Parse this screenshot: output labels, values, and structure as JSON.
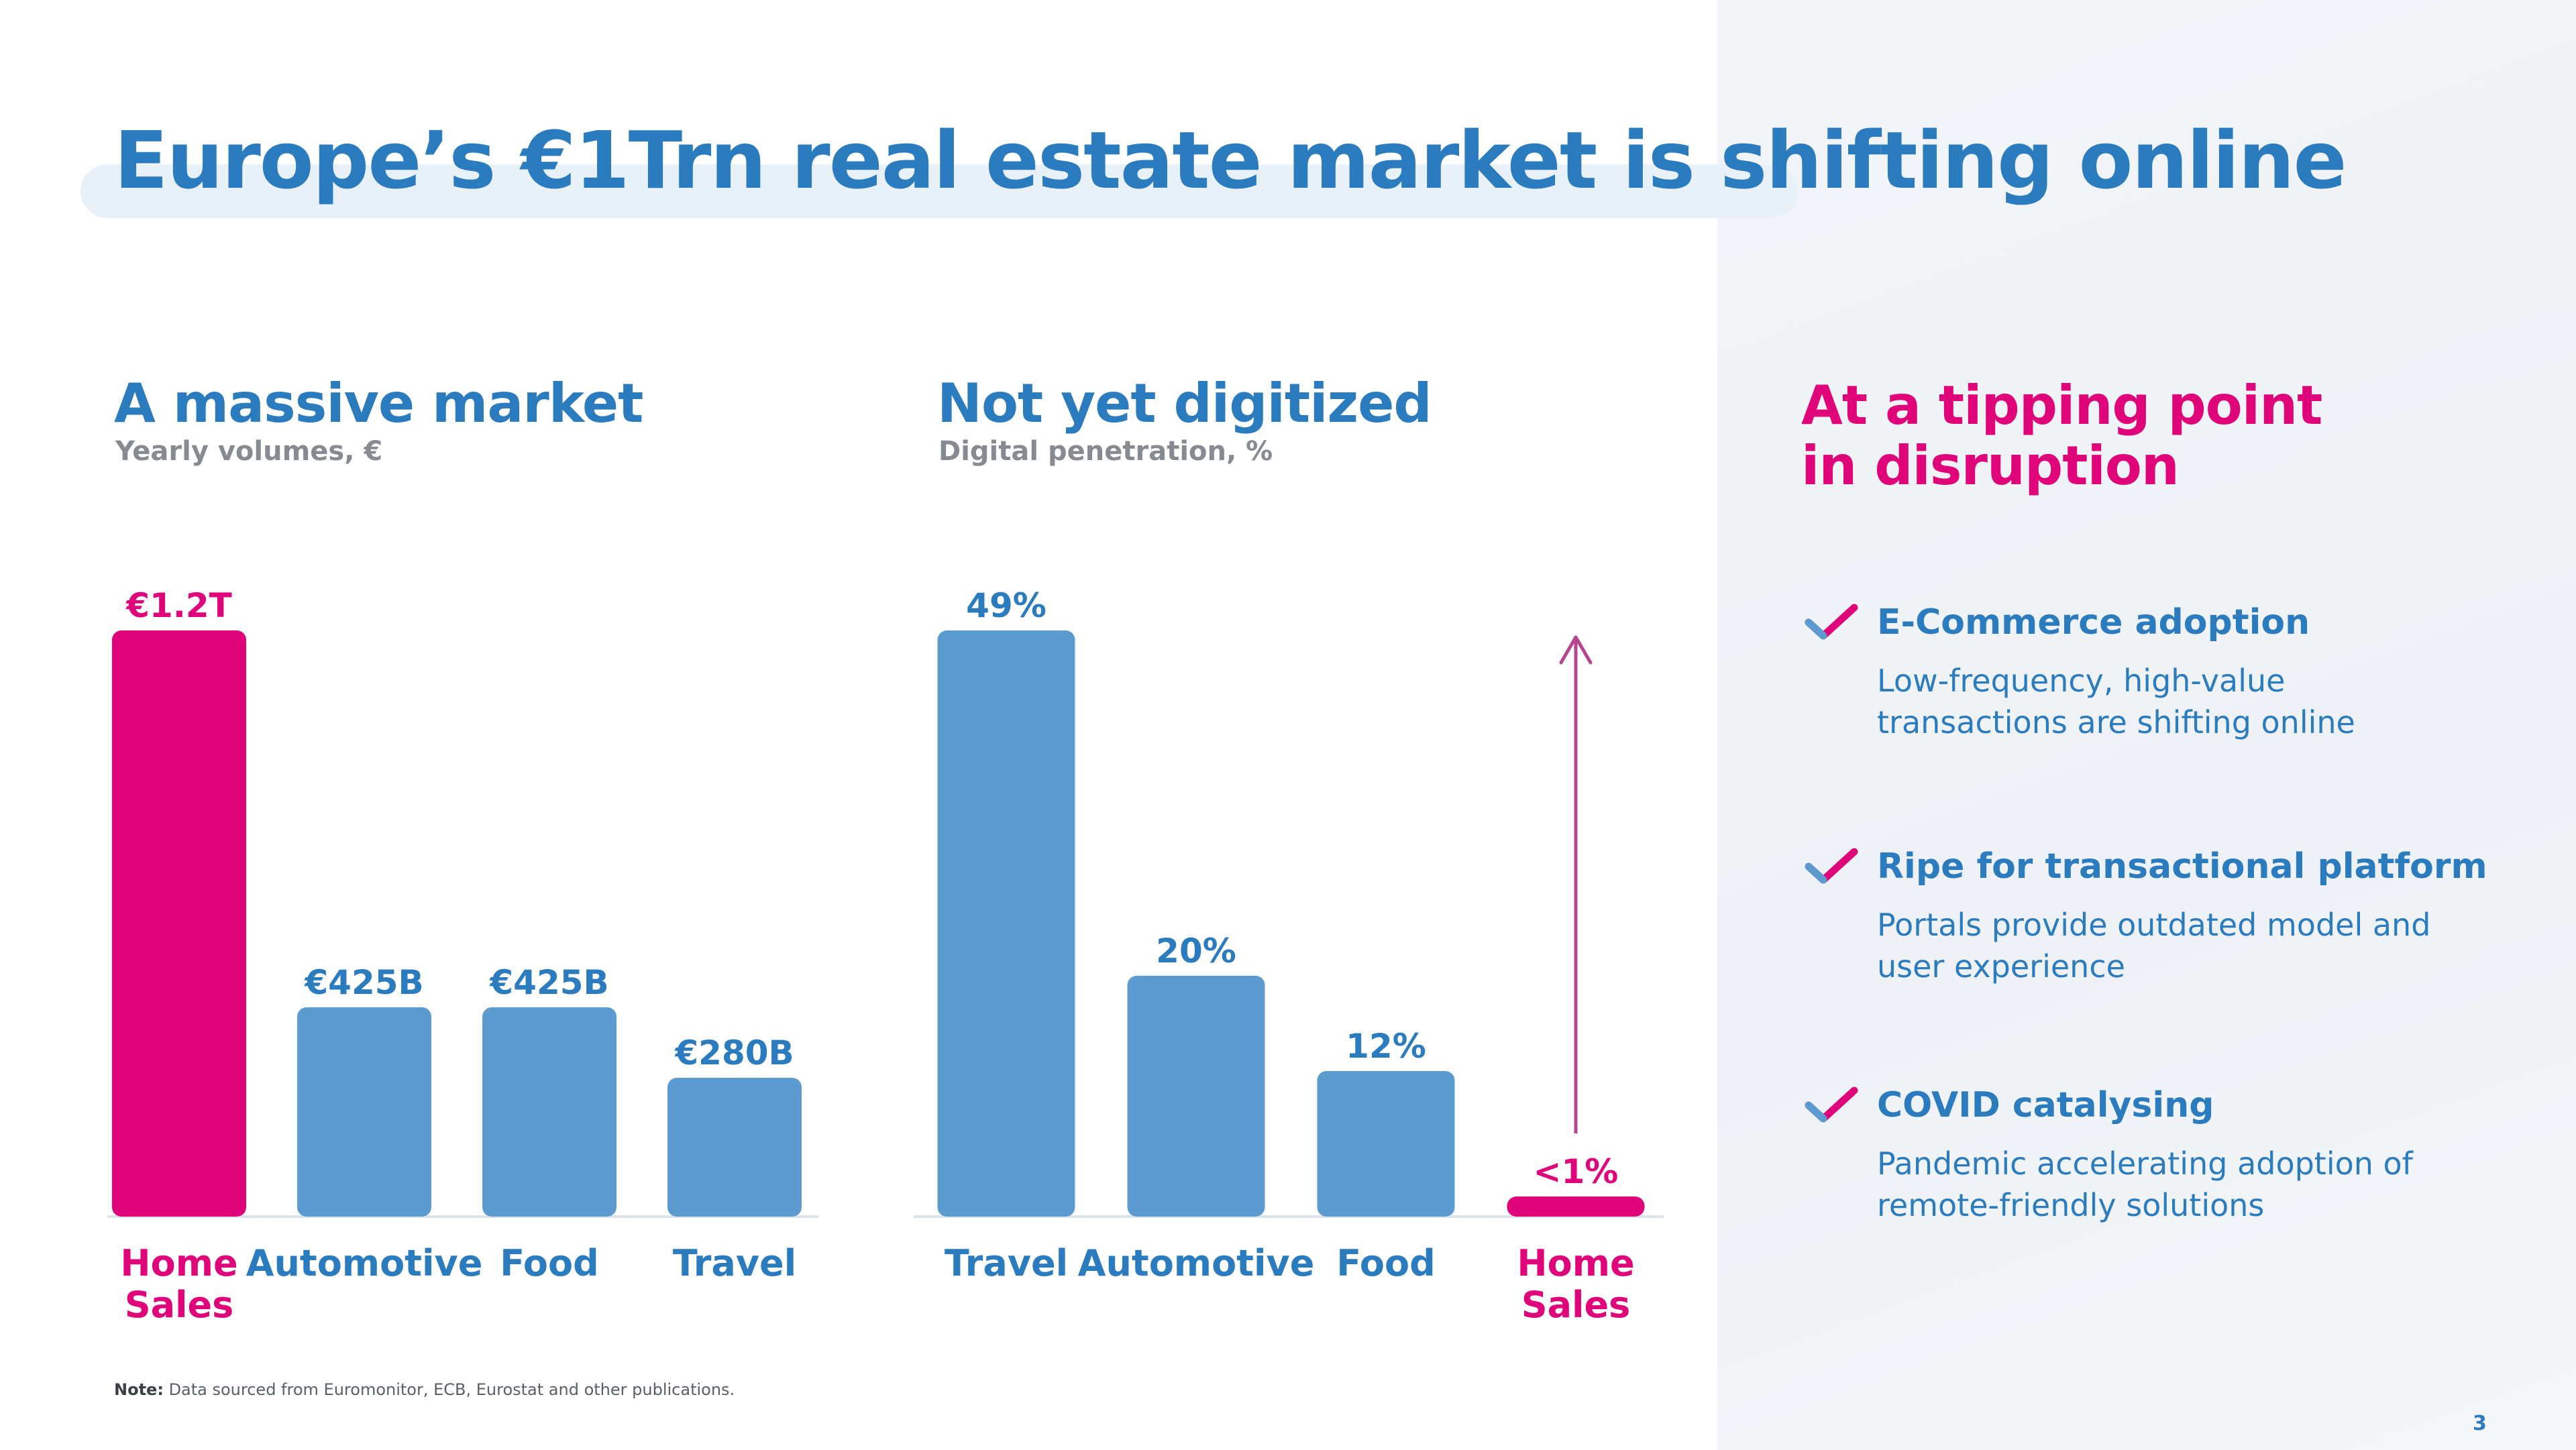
{
  "title": "Europe’s €1Trn real estate market is shifting online",
  "left_section": {
    "title": "A massive market",
    "subtitle": "Yearly volumes, €"
  },
  "middle_section": {
    "title": "Not yet digitized",
    "subtitle": "Digital penetration, %"
  },
  "right_section": {
    "title_line1": "At a tipping point",
    "title_line2": "in disruption",
    "items": [
      {
        "icon": "check-icon",
        "title": "E-Commerce adoption",
        "desc": "Low-frequency, high-value transactions are shifting online"
      },
      {
        "icon": "check-icon",
        "title": "Ripe for transactional platform",
        "desc": "Portals provide outdated model and user experience"
      },
      {
        "icon": "check-icon",
        "title": "COVID catalysing",
        "desc": "Pandemic accelerating adoption of remote-friendly solutions"
      }
    ]
  },
  "note": {
    "label": "Note:",
    "text": "Data sourced from Euromonitor, ECB, Eurostat and other publications."
  },
  "page_number": "3",
  "colors": {
    "blue": "#5b9bd0",
    "pink": "#e0047b",
    "title_blue": "#2b7bbf"
  },
  "chart_data": [
    {
      "type": "bar",
      "title": "A massive market",
      "subtitle": "Yearly volumes, €",
      "categories": [
        "Home Sales",
        "Automotive",
        "Food",
        "Travel"
      ],
      "values": [
        1200,
        425,
        425,
        280
      ],
      "unit": "€B",
      "data_labels": [
        "€1.2T",
        "€425B",
        "€425B",
        "€280B"
      ],
      "highlight": "Home Sales",
      "ylim": [
        0,
        1200
      ],
      "grid": false
    },
    {
      "type": "bar",
      "title": "Not yet digitized",
      "subtitle": "Digital penetration, %",
      "categories": [
        "Travel",
        "Automotive",
        "Food",
        "Home Sales"
      ],
      "values": [
        49,
        20,
        12,
        1
      ],
      "unit": "%",
      "data_labels": [
        "49%",
        "20%",
        "12%",
        "<1%"
      ],
      "highlight": "Home Sales",
      "ylim": [
        0,
        49
      ],
      "grid": false,
      "annotation": "up-arrow-icon"
    }
  ]
}
